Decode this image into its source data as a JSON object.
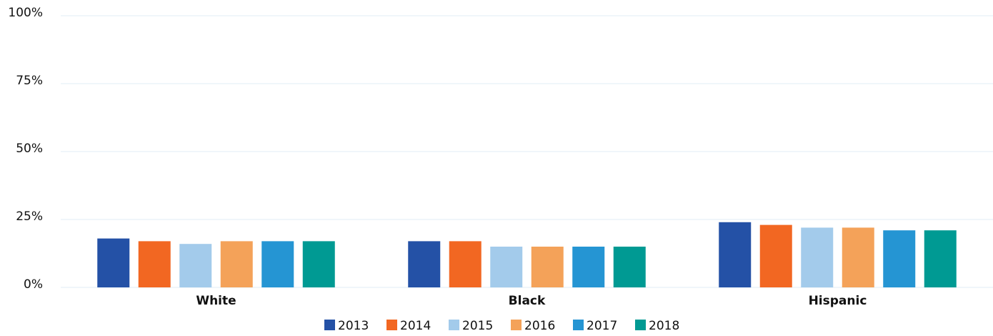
{
  "chart_data": {
    "type": "bar",
    "categories": [
      "White",
      "Black",
      "Hispanic"
    ],
    "series": [
      {
        "name": "2013",
        "color": "#2451a6",
        "values": [
          18,
          17,
          24
        ]
      },
      {
        "name": "2014",
        "color": "#f26722",
        "values": [
          17,
          17,
          23
        ]
      },
      {
        "name": "2015",
        "color": "#a3cbeb",
        "values": [
          16,
          15,
          22
        ]
      },
      {
        "name": "2016",
        "color": "#f4a259",
        "values": [
          17,
          15,
          22
        ]
      },
      {
        "name": "2017",
        "color": "#2595d3",
        "values": [
          17,
          15,
          21
        ]
      },
      {
        "name": "2018",
        "color": "#009a93",
        "values": [
          17,
          15,
          21
        ]
      }
    ],
    "ylim": [
      0,
      100
    ],
    "yticks": [
      {
        "value": 0,
        "label": "0%"
      },
      {
        "value": 25,
        "label": "25%"
      },
      {
        "value": 50,
        "label": "50%"
      },
      {
        "value": 75,
        "label": "75%"
      },
      {
        "value": 100,
        "label": "100%"
      }
    ],
    "grid": true,
    "legend": "bottom"
  }
}
